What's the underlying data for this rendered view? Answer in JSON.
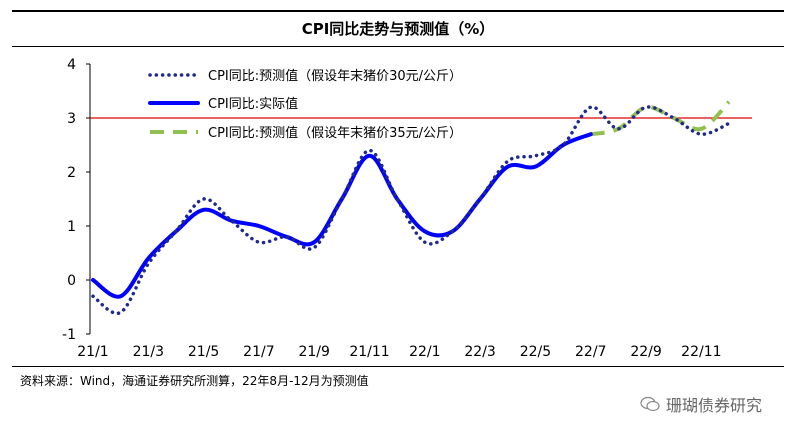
{
  "title": "CPI同比走势与预测值（%）",
  "source": "资料来源：Wind，海通证券研究所测算，22年8月-12月为预测值",
  "watermark": "珊瑚债券研究",
  "colors": {
    "actual": "#0000ff",
    "pred30": "#1f2a8c",
    "pred35": "#92c050",
    "refline": "#e00000"
  },
  "chart_data": {
    "type": "line",
    "title": "CPI同比走势与预测值（%）",
    "xlabel": "",
    "ylabel": "",
    "ylim": [
      -1,
      4
    ],
    "yticks": [
      -1,
      0,
      1,
      2,
      3,
      4
    ],
    "x": [
      "21/1",
      "21/2",
      "21/3",
      "21/4",
      "21/5",
      "21/6",
      "21/7",
      "21/8",
      "21/9",
      "21/10",
      "21/11",
      "21/12",
      "22/1",
      "22/2",
      "22/3",
      "22/4",
      "22/5",
      "22/6",
      "22/7",
      "22/8",
      "22/9",
      "22/10",
      "22/11",
      "22/12"
    ],
    "xtick_labels": [
      "21/1",
      "21/3",
      "21/5",
      "21/7",
      "21/9",
      "21/11",
      "22/1",
      "22/3",
      "22/5",
      "22/7",
      "22/9",
      "22/11"
    ],
    "reference_line": 3,
    "series": [
      {
        "name": "CPI同比:预测值（假设年末猪价30元/公斤）",
        "style": "dotted",
        "values": [
          -0.3,
          -0.6,
          0.3,
          0.9,
          1.5,
          1.1,
          0.7,
          0.8,
          0.6,
          1.5,
          2.4,
          1.5,
          0.7,
          0.9,
          1.5,
          2.2,
          2.3,
          2.5,
          3.2,
          2.8,
          3.2,
          3.0,
          2.7,
          2.9
        ]
      },
      {
        "name": "CPI同比:实际值",
        "style": "solid",
        "values": [
          0.0,
          -0.3,
          0.4,
          0.9,
          1.3,
          1.1,
          1.0,
          0.8,
          0.7,
          1.5,
          2.3,
          1.5,
          0.9,
          0.9,
          1.5,
          2.1,
          2.1,
          2.5,
          2.7,
          null,
          null,
          null,
          null,
          null
        ]
      },
      {
        "name": "CPI同比:预测值（假设年末猪价35元/公斤）",
        "style": "dashed",
        "values": [
          null,
          null,
          null,
          null,
          null,
          null,
          null,
          null,
          null,
          null,
          null,
          null,
          null,
          null,
          null,
          null,
          null,
          null,
          2.7,
          2.8,
          3.2,
          3.0,
          2.8,
          3.3
        ]
      }
    ],
    "legend": "top-left"
  }
}
